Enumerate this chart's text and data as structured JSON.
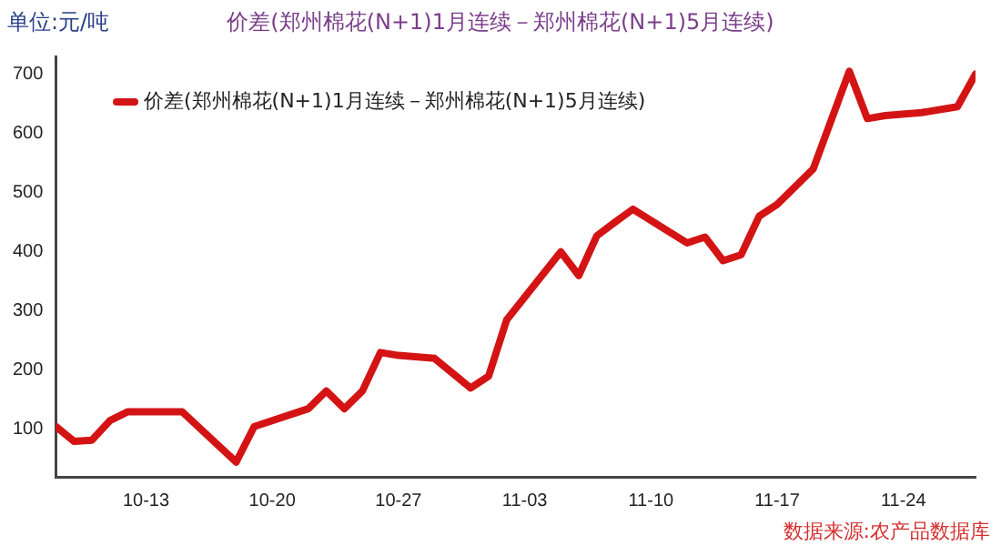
{
  "chart_data": {
    "type": "line",
    "title": "价差(郑州棉花(N+1)1月连续－郑州棉花(N+1)5月连续)",
    "ylabel": "单位:元/吨",
    "x": [
      "--10-08",
      "--10-09",
      "--10-10",
      "--10-11",
      "--10-12",
      "--10-15",
      "--10-18",
      "--10-19",
      "--10-22",
      "--10-23",
      "--10-24",
      "--10-25",
      "--10-26",
      "--10-27",
      "--10-29",
      "--10-31",
      "--11-01",
      "--11-02",
      "--11-05",
      "--11-06",
      "--11-07",
      "--11-08",
      "--11-09",
      "--11-12",
      "--11-13",
      "--11-14",
      "--11-15",
      "--11-16",
      "--11-17",
      "--11-19",
      "--11-21",
      "--11-22",
      "--11-23",
      "--11-25",
      "--11-27",
      "--11-28"
    ],
    "series": [
      {
        "name": "价差(郑州棉花(N+1)1月连续－郑州棉花(N+1)5月连续)",
        "color": "#d41414",
        "values": [
          105,
          80,
          82,
          115,
          130,
          130,
          45,
          105,
          135,
          165,
          135,
          165,
          230,
          225,
          220,
          170,
          190,
          285,
          400,
          360,
          427,
          450,
          472,
          415,
          425,
          385,
          395,
          460,
          480,
          540,
          705,
          625,
          630,
          635,
          645,
          700
        ]
      }
    ],
    "xlim": [
      "--10-08",
      "--11-28"
    ],
    "xticks": [
      {
        "value": "--10-13",
        "label": "10-13"
      },
      {
        "value": "--10-20",
        "label": "10-20"
      },
      {
        "value": "--10-27",
        "label": "10-27"
      },
      {
        "value": "--11-03",
        "label": "11-03"
      },
      {
        "value": "--11-10",
        "label": "11-10"
      },
      {
        "value": "--11-17",
        "label": "11-17"
      },
      {
        "value": "--11-24",
        "label": "11-24"
      }
    ],
    "ylim": [
      20,
      730
    ],
    "yticks": [
      100,
      200,
      300,
      400,
      500,
      600,
      700
    ],
    "grid": false,
    "legend": "top left",
    "marker": "none",
    "line_style": "solid",
    "annotations": [
      "数据来源:农产品数据库"
    ]
  }
}
